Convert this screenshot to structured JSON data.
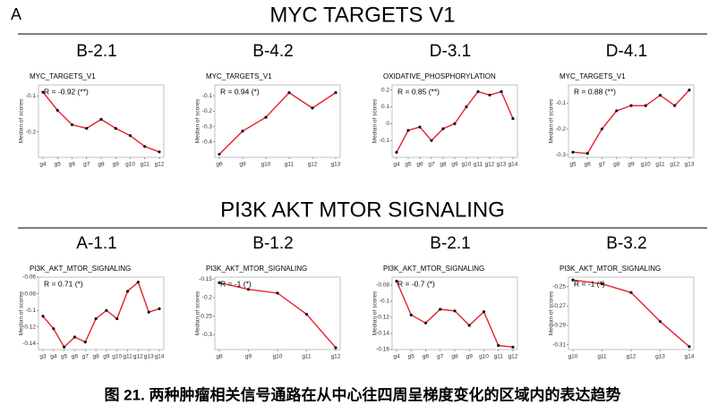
{
  "panel_label": "A",
  "sections": [
    {
      "title": "MYC TARGETS V1"
    },
    {
      "title": "PI3K AKT MTOR SIGNALING"
    }
  ],
  "caption": "图 21. 两种肿瘤相关信号通路在从中心往四周呈梯度变化的区域内的表达趋势",
  "chart_data": [
    {
      "type": "line",
      "panel": "B-2.1",
      "title": "MYC_TARGETS_V1",
      "annotation": "R = -0.92 (**)",
      "ylabel": "Median of scores",
      "categories": [
        "g4",
        "g5",
        "g6",
        "g7",
        "g8",
        "g9",
        "g10",
        "g11",
        "g12"
      ],
      "values": [
        -0.09,
        -0.14,
        -0.18,
        -0.19,
        -0.165,
        -0.19,
        -0.21,
        -0.24,
        -0.255
      ],
      "ylim": [
        -0.27,
        -0.07
      ],
      "yticks": [
        -0.1,
        -0.2
      ],
      "color": "#e8202a"
    },
    {
      "type": "line",
      "panel": "B-4.2",
      "title": "MYC_TARGETS_V1",
      "annotation": "R = 0.94 (*)",
      "ylabel": "Median of scores",
      "categories": [
        "g6",
        "g9",
        "g10",
        "g11",
        "g12",
        "g13"
      ],
      "values": [
        -0.48,
        -0.33,
        -0.24,
        -0.08,
        -0.18,
        -0.08
      ],
      "ylim": [
        -0.5,
        -0.03
      ],
      "yticks": [
        -0.1,
        -0.2,
        -0.3,
        -0.4
      ],
      "color": "#e8202a"
    },
    {
      "type": "line",
      "panel": "D-3.1",
      "title": "OXIDATIVE_PHOSPHORYLATION",
      "annotation": "R = 0.85 (**)",
      "ylabel": "Median of scores",
      "categories": [
        "g4",
        "g5",
        "g6",
        "g7",
        "g8",
        "g9",
        "g10",
        "g11",
        "g12",
        "g13",
        "g14"
      ],
      "values": [
        -0.17,
        -0.04,
        -0.02,
        -0.1,
        -0.03,
        0.0,
        0.1,
        0.19,
        0.17,
        0.19,
        0.03
      ],
      "ylim": [
        -0.2,
        0.23
      ],
      "yticks": [
        0.2,
        0.1,
        0,
        -0.1
      ],
      "color": "#e8202a"
    },
    {
      "type": "line",
      "panel": "D-4.1",
      "title": "MYC_TARGETS_V1",
      "annotation": "R = 0.88 (**)",
      "ylabel": "Median of scores",
      "categories": [
        "g5",
        "g6",
        "g7",
        "g8",
        "g9",
        "g10",
        "g11",
        "g12",
        "g13"
      ],
      "values": [
        -0.29,
        -0.295,
        -0.2,
        -0.13,
        -0.11,
        -0.11,
        -0.07,
        -0.11,
        -0.05
      ],
      "ylim": [
        -0.31,
        -0.03
      ],
      "yticks": [
        -0.1,
        -0.2,
        -0.3
      ],
      "color": "#e8202a"
    },
    {
      "type": "line",
      "panel": "A-1.1",
      "title": "PI3K_AKT_MTOR_SIGNALING",
      "annotation": "R = 0.71 (*)",
      "ylabel": "Median of scores",
      "categories": [
        "g3",
        "g4",
        "g5",
        "g6",
        "g7",
        "g8",
        "g9",
        "g10",
        "g11",
        "g12",
        "g13",
        "g14"
      ],
      "values": [
        -0.107,
        -0.122,
        -0.144,
        -0.132,
        -0.138,
        -0.11,
        -0.1,
        -0.11,
        -0.077,
        -0.066,
        -0.102,
        -0.098
      ],
      "ylim": [
        -0.147,
        -0.06
      ],
      "yticks": [
        -0.06,
        -0.08,
        -0.1,
        -0.12,
        -0.14
      ],
      "color": "#e8202a"
    },
    {
      "type": "line",
      "panel": "B-1.2",
      "title": "PI3K_AKT_MTOR_SIGNALING",
      "annotation": "R = -1 (*)",
      "ylabel": "Median of scores",
      "categories": [
        "g8",
        "g9",
        "g10",
        "g11",
        "g12"
      ],
      "values": [
        -0.16,
        -0.178,
        -0.188,
        -0.245,
        -0.335
      ],
      "ylim": [
        -0.34,
        -0.145
      ],
      "yticks": [
        -0.15,
        -0.2,
        -0.25,
        -0.3
      ],
      "color": "#e8202a"
    },
    {
      "type": "line",
      "panel": "B-2.1",
      "title": "PI3K_AKT_MTOR_SIGNALING",
      "annotation": "R = -0.7 (*)",
      "ylabel": "Median of scores",
      "categories": [
        "g4",
        "g5",
        "g6",
        "g7",
        "g8",
        "g9",
        "g10",
        "g11",
        "g12"
      ],
      "values": [
        -0.075,
        -0.117,
        -0.127,
        -0.11,
        -0.112,
        -0.13,
        -0.113,
        -0.155,
        -0.157
      ],
      "ylim": [
        -0.16,
        -0.07
      ],
      "yticks": [
        -0.08,
        -0.1,
        -0.12,
        -0.14,
        -0.16
      ],
      "color": "#e8202a"
    },
    {
      "type": "line",
      "panel": "B-3.2",
      "title": "PI3K_AKT_MTOR_SIGNALING",
      "annotation": "R = -1 (*)",
      "ylabel": "Median of scores",
      "categories": [
        "g10",
        "g11",
        "g12",
        "g13",
        "g14"
      ],
      "values": [
        -0.243,
        -0.247,
        -0.256,
        -0.286,
        -0.312
      ],
      "ylim": [
        -0.315,
        -0.24
      ],
      "yticks": [
        -0.25,
        -0.27,
        -0.29,
        -0.31
      ],
      "color": "#e8202a"
    }
  ]
}
